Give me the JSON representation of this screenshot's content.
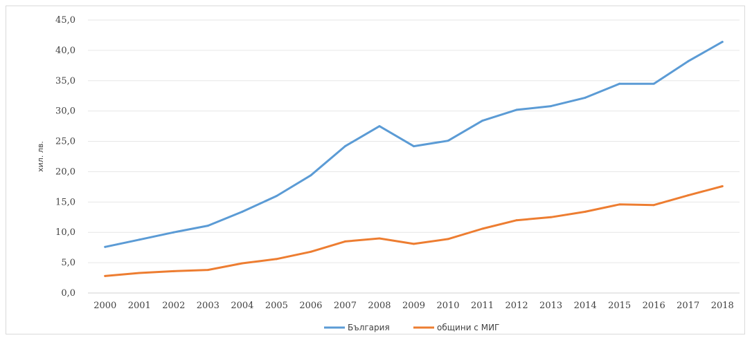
{
  "chart_data": {
    "type": "line",
    "x": [
      "2000",
      "2001",
      "2002",
      "2003",
      "2004",
      "2005",
      "2006",
      "2007",
      "2008",
      "2009",
      "2010",
      "2011",
      "2012",
      "2013",
      "2014",
      "2015",
      "2016",
      "2017",
      "2018"
    ],
    "series": [
      {
        "name": "България",
        "color": "#5b9bd5",
        "values": [
          7.6,
          8.8,
          10.0,
          11.1,
          13.4,
          16.0,
          19.4,
          24.2,
          27.5,
          24.2,
          25.1,
          28.4,
          30.2,
          30.8,
          32.2,
          34.5,
          34.5,
          38.2,
          41.4
        ]
      },
      {
        "name": "общини с МИГ",
        "color": "#ed7d31",
        "values": [
          2.8,
          3.3,
          3.6,
          3.8,
          4.9,
          5.6,
          6.8,
          8.5,
          9.0,
          8.1,
          8.9,
          10.6,
          12.0,
          12.5,
          13.4,
          14.6,
          14.5,
          16.1,
          17.6
        ]
      }
    ],
    "ylabel": "хил. лв.",
    "xlabel": "",
    "ylim": [
      0,
      45
    ],
    "ytick_step": 5,
    "ytick_labels": [
      "0,0",
      "5,0",
      "10,0",
      "15,0",
      "20,0",
      "25,0",
      "30,0",
      "35,0",
      "40,0",
      "45,0"
    ],
    "grid": true,
    "legend_position": "bottom"
  }
}
